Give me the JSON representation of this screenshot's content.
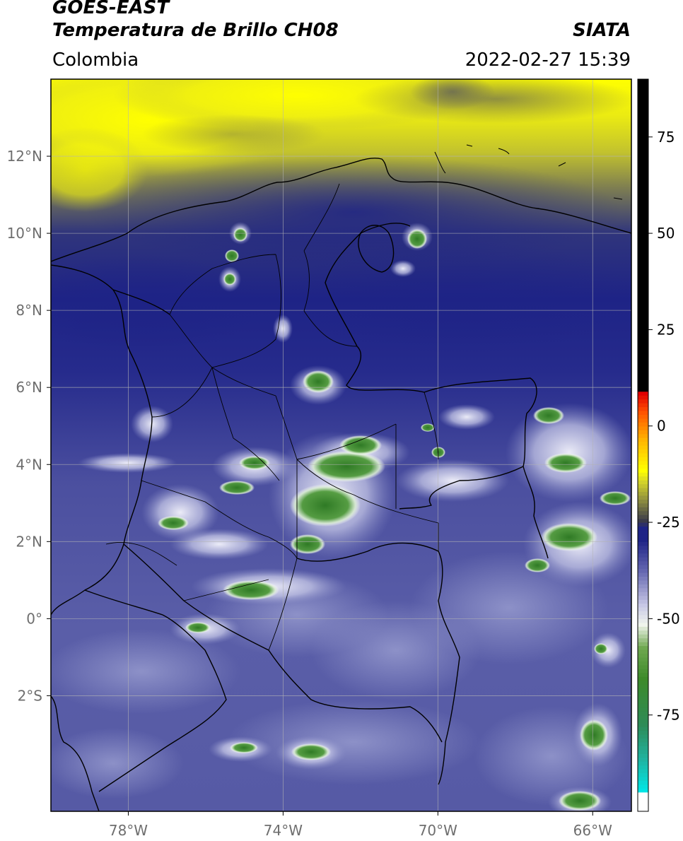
{
  "header": {
    "satellite": "GOES-EAST",
    "product": "Temperatura de Brillo CH08",
    "region": "Colombia",
    "source": "SIATA",
    "timestamp": "2022-02-27 15:39"
  },
  "axes": {
    "lon_ticks": [
      {
        "value": -78,
        "label": "78°W"
      },
      {
        "value": -74,
        "label": "74°W"
      },
      {
        "value": -70,
        "label": "70°W"
      },
      {
        "value": -66,
        "label": "66°W"
      }
    ],
    "lat_ticks": [
      {
        "value": 12,
        "label": "12°N"
      },
      {
        "value": 10,
        "label": "10°N"
      },
      {
        "value": 8,
        "label": "8°N"
      },
      {
        "value": 6,
        "label": "6°N"
      },
      {
        "value": 4,
        "label": "4°N"
      },
      {
        "value": 2,
        "label": "2°N"
      },
      {
        "value": 0,
        "label": "0°"
      },
      {
        "value": -2,
        "label": "2°S"
      }
    ],
    "lon_range": [
      -80,
      -65
    ],
    "lat_range": [
      -5,
      14
    ],
    "grid": true
  },
  "colorbar": {
    "range": [
      -100,
      90
    ],
    "ticks": [
      {
        "value": 75,
        "label": "75"
      },
      {
        "value": 50,
        "label": "50"
      },
      {
        "value": 25,
        "label": "25"
      },
      {
        "value": 0,
        "label": "0"
      },
      {
        "value": -25,
        "label": "-25"
      },
      {
        "value": -50,
        "label": "-50"
      },
      {
        "value": -75,
        "label": "-75"
      }
    ],
    "stops": [
      {
        "value": -100,
        "color": "#ffffff"
      },
      {
        "value": -96,
        "color": "#ffffff"
      },
      {
        "value": -95,
        "color": "#00e5e5"
      },
      {
        "value": -87,
        "color": "#20b3a0"
      },
      {
        "value": -78,
        "color": "#2e8b57"
      },
      {
        "value": -66,
        "color": "#3d8a2a"
      },
      {
        "value": -58,
        "color": "#6fa850"
      },
      {
        "value": -52,
        "color": "#f0f4ec"
      },
      {
        "value": -47,
        "color": "#c8c8e6"
      },
      {
        "value": -38,
        "color": "#6466b0"
      },
      {
        "value": -30,
        "color": "#1e2386"
      },
      {
        "value": -27,
        "color": "#1e2386"
      },
      {
        "value": -25,
        "color": "#3b3b4a"
      },
      {
        "value": -20,
        "color": "#8a8a40"
      },
      {
        "value": -15,
        "color": "#d2d22a"
      },
      {
        "value": -12,
        "color": "#ffff00"
      },
      {
        "value": -4,
        "color": "#ffb400"
      },
      {
        "value": 3,
        "color": "#ff5500"
      },
      {
        "value": 8,
        "color": "#e00000"
      },
      {
        "value": 9,
        "color": "#000000"
      },
      {
        "value": 90,
        "color": "#000000"
      }
    ]
  },
  "colors": {
    "yellow": "#ffff00",
    "olive": "#8a8a40",
    "dark_blue": "#1e2386",
    "mid_blue": "#4a4ea0",
    "light_blue": "#8c90c8",
    "cloud_white": "#f2f2fa",
    "cloud_green": "#3d8a2a",
    "border": "#000000",
    "grid": "#b4b4b4"
  }
}
